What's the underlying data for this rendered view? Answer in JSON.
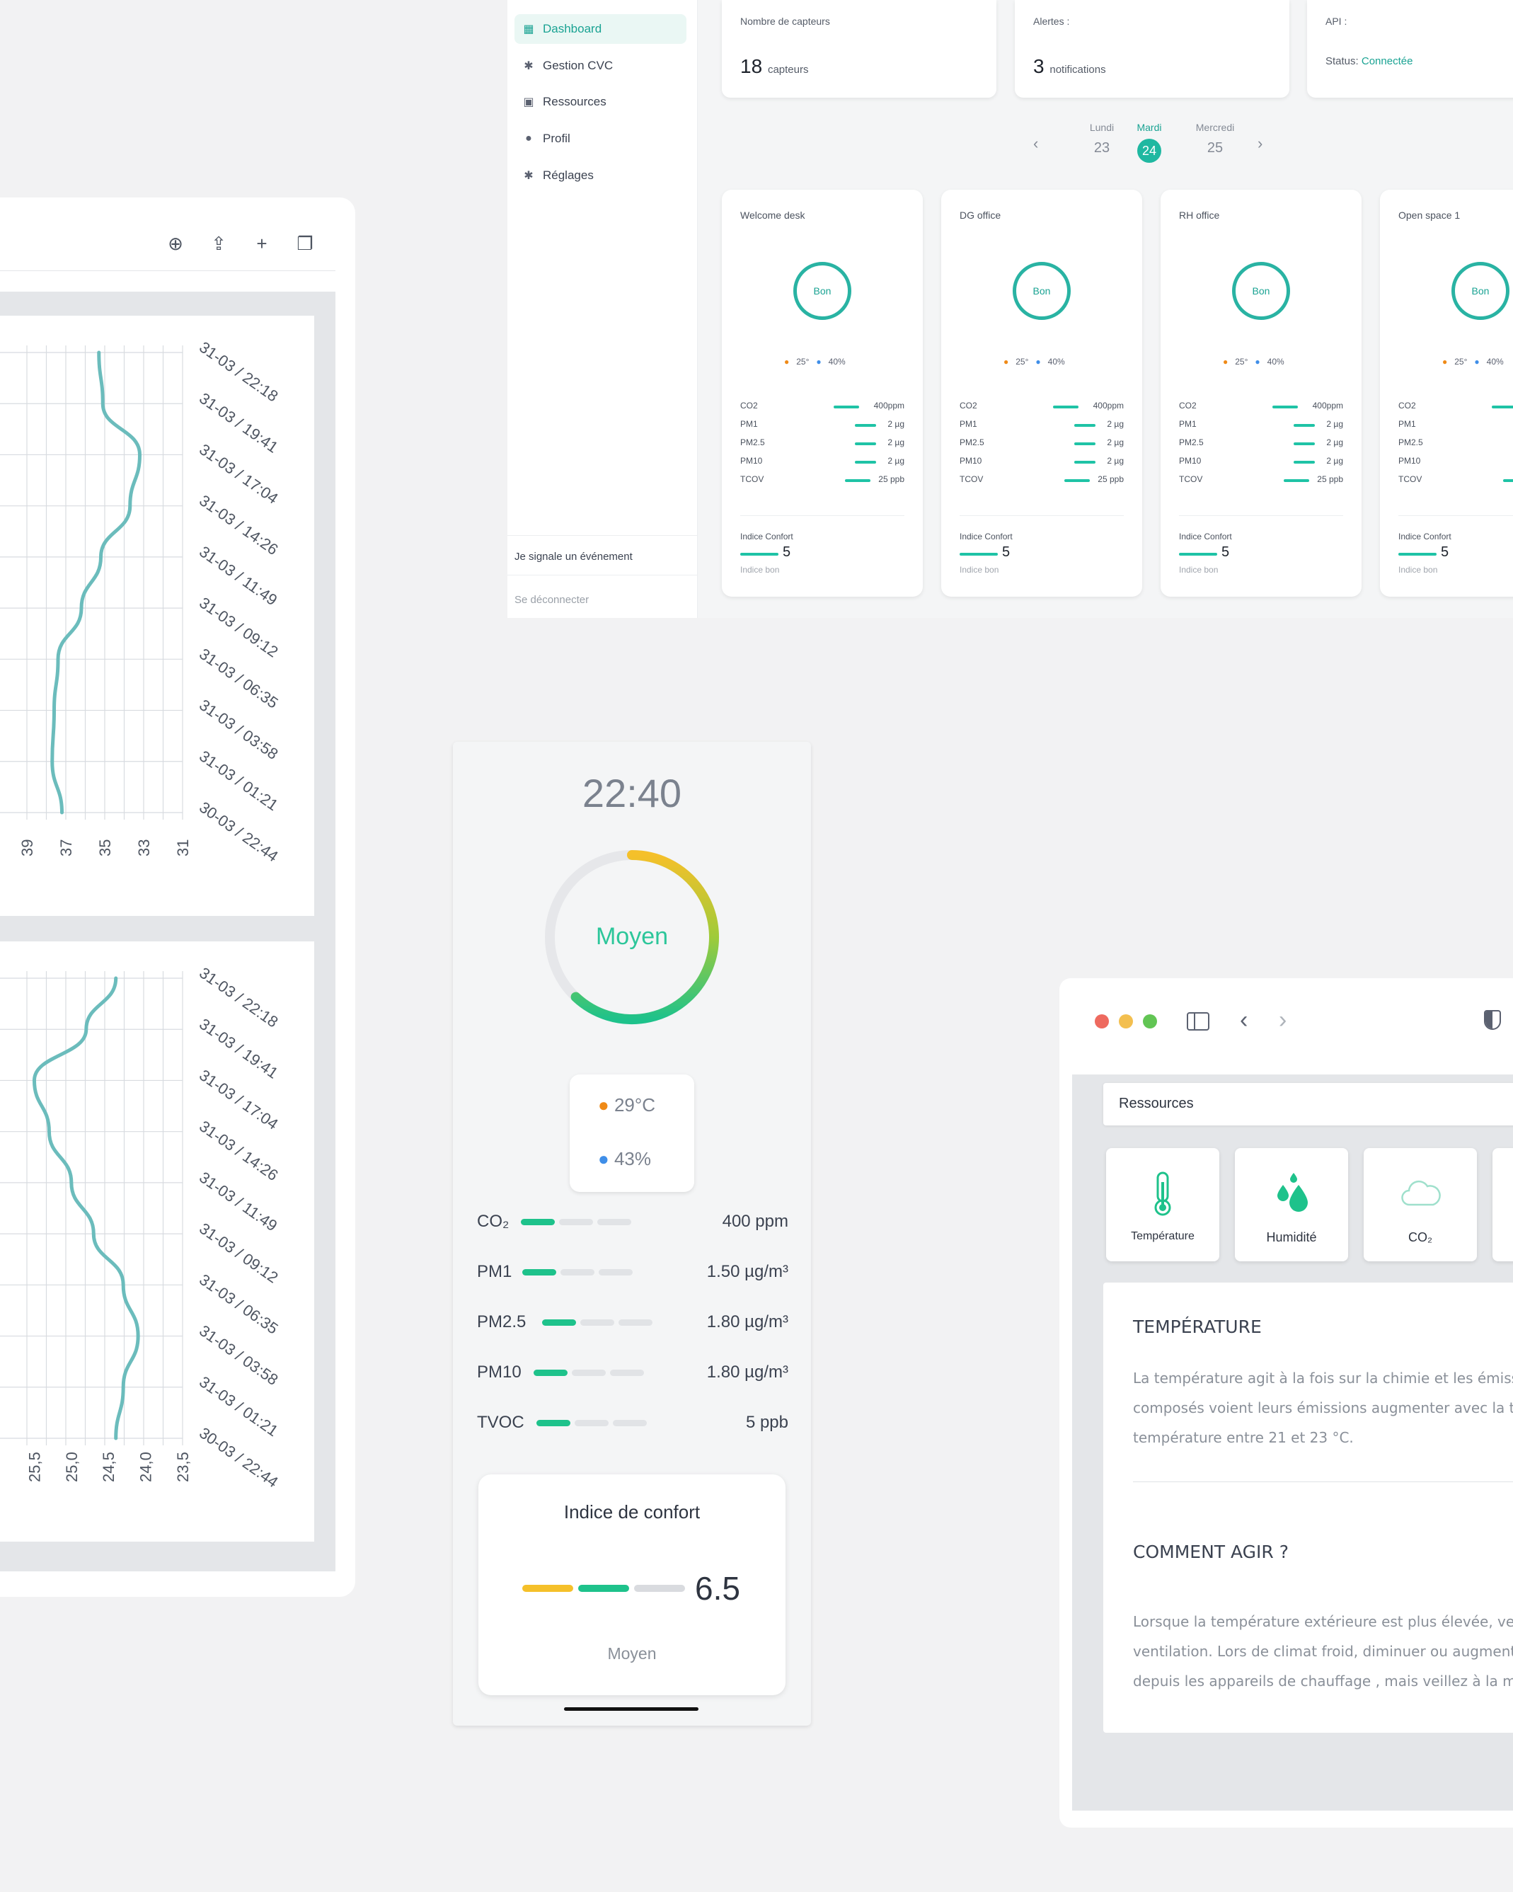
{
  "dashboard": {
    "nav": [
      {
        "label": "Dashboard",
        "icon": "layout-icon"
      },
      {
        "label": "Gestion CVC",
        "icon": "gear-icon"
      },
      {
        "label": "Ressources",
        "icon": "book-icon"
      },
      {
        "label": "Profil",
        "icon": "user-icon"
      },
      {
        "label": "Réglages",
        "icon": "gear-icon"
      }
    ],
    "report_event": "Je signale un événement",
    "logout": "Se déconnecter",
    "stats": {
      "sensors_label": "Nombre de capteurs",
      "sensors_value": "18",
      "sensors_unit": "capteurs",
      "alerts_label": "Alertes :",
      "alerts_value": "3",
      "alerts_unit": "notifications",
      "api_label": "API :",
      "api_status_label": "Status:",
      "api_status_value": "Connectée"
    },
    "days": [
      {
        "name": "Lundi",
        "num": "23"
      },
      {
        "name": "Mardi",
        "num": "24"
      },
      {
        "name": "Mercredi",
        "num": "25"
      }
    ],
    "prev": "‹",
    "next": "›",
    "rooms": [
      {
        "name": "Welcome desk"
      },
      {
        "name": "DG office"
      },
      {
        "name": "RH office"
      },
      {
        "name": "Open space 1"
      }
    ],
    "room_status": "Bon",
    "room_temp": "25°",
    "room_hum": "40%",
    "room_metrics": [
      {
        "label": "CO2",
        "value": "400ppm"
      },
      {
        "label": "PM1",
        "value": "2 µg"
      },
      {
        "label": "PM2.5",
        "value": "2 µg"
      },
      {
        "label": "PM10",
        "value": "2 µg"
      },
      {
        "label": "TCOV",
        "value": "25 ppb"
      }
    ],
    "comfort_label": "Indice Confort",
    "comfort_value": "5",
    "comfort_text": "Indice bon"
  },
  "chart_data": [
    {
      "type": "line",
      "x": [
        "30-03 / 22:44",
        "31-03 / 01:21",
        "31-03 / 03:58",
        "31-03 / 06:35",
        "31-03 / 09:12",
        "31-03 / 11:49",
        "31-03 / 14:26",
        "31-03 / 17:04",
        "31-03 / 19:41",
        "31-03 / 22:18"
      ],
      "y": [
        37.2,
        37.7,
        37.6,
        37.4,
        36.2,
        35.2,
        33.7,
        33.2,
        35.1,
        35.3
      ],
      "yticks": [
        "39",
        "37",
        "35",
        "33",
        "31"
      ],
      "ylim": [
        39,
        31
      ],
      "color": "#6bbcbc"
    },
    {
      "type": "line",
      "x": [
        "30-03 / 22:44",
        "31-03 / 01:21",
        "31-03 / 03:58",
        "31-03 / 06:35",
        "31-03 / 09:12",
        "31-03 / 11:49",
        "31-03 / 14:26",
        "31-03 / 17:04",
        "31-03 / 19:41",
        "31-03 / 22:18"
      ],
      "y": [
        24.4,
        24.3,
        24.1,
        24.3,
        24.7,
        25.0,
        25.3,
        25.5,
        24.8,
        24.4
      ],
      "yticks": [
        "25,5",
        "25,0",
        "24,5",
        "24,0",
        "23,5"
      ],
      "ylim": [
        25.6,
        23.5
      ],
      "color": "#6bbcbc"
    }
  ],
  "mobile": {
    "time": "22:40",
    "status": "Moyen",
    "gauge_fraction": 0.62,
    "temp": "29°C",
    "humidity": "43%",
    "metrics": [
      {
        "label": "CO₂",
        "value": "400 ppm"
      },
      {
        "label": "PM1",
        "value": "1.50 µg/m³"
      },
      {
        "label": "PM2.5",
        "value": "1.80 µg/m³"
      },
      {
        "label": "PM10",
        "value": "1.80 µg/m³"
      },
      {
        "label": "TVOC",
        "value": "5 ppb"
      }
    ],
    "comfort_title": "Indice de confort",
    "comfort_value": "6.5",
    "comfort_text": "Moyen"
  },
  "resources": {
    "title": "Ressources",
    "tiles": [
      {
        "label": "Température",
        "icon": "thermometer-icon"
      },
      {
        "label": "Humidité",
        "icon": "droplets-icon"
      },
      {
        "label": "CO₂",
        "icon": "co2-cloud-icon"
      }
    ],
    "heading": "TEMPÉRATURE",
    "paragraph": [
      "La température agit à la fois sur la chimie et les émissions",
      "composés voient leurs émissions augmenter avec la temp",
      "température entre 21 et 23 °C."
    ],
    "heading2": "COMMENT AGIR ?",
    "paragraph2": [
      "Lorsque la température extérieure est plus élevée, veillez",
      "ventilation. Lors de climat froid, diminuer ou augmenter l",
      "depuis les appareils de chauffage , mais veillez à la mainte"
    ]
  },
  "colors": {
    "accent": "#1aa393",
    "teal_bar": "#1fc3a6",
    "yellow": "#f5c02a",
    "green": "#1ec28b",
    "chart_line": "#6bbcbc"
  }
}
